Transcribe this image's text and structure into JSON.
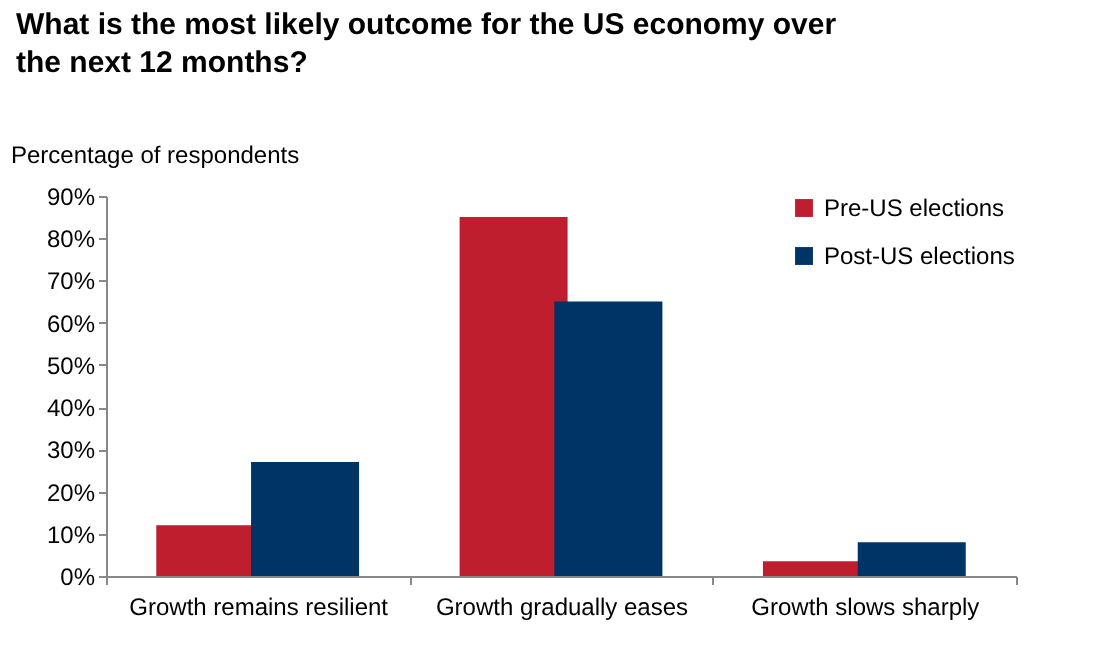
{
  "chart_data": {
    "type": "bar",
    "title": "What is the most likely outcome for the US economy over the next 12 months?",
    "ylabel": "Percentage of respondents",
    "categories": [
      "Growth remains resilient",
      "Growth gradually eases",
      "Growth slows sharply"
    ],
    "series": [
      {
        "name": "Pre-US elections",
        "color": "#be1e2d",
        "values": [
          12,
          85,
          3.5
        ]
      },
      {
        "name": "Post-US elections",
        "color": "#003366",
        "values": [
          27,
          65,
          8
        ]
      }
    ],
    "ylim": [
      0,
      90
    ],
    "yticks": [
      {
        "value": 0,
        "label": "0%"
      },
      {
        "value": 10,
        "label": "10%"
      },
      {
        "value": 20,
        "label": "20%"
      },
      {
        "value": 30,
        "label": "30%"
      },
      {
        "value": 40,
        "label": "40%"
      },
      {
        "value": 50,
        "label": "50%"
      },
      {
        "value": 60,
        "label": "60%"
      },
      {
        "value": 70,
        "label": "70%"
      },
      {
        "value": 80,
        "label": "80%"
      },
      {
        "value": 90,
        "label": "90%"
      }
    ],
    "grid": false,
    "legend": "top right"
  }
}
